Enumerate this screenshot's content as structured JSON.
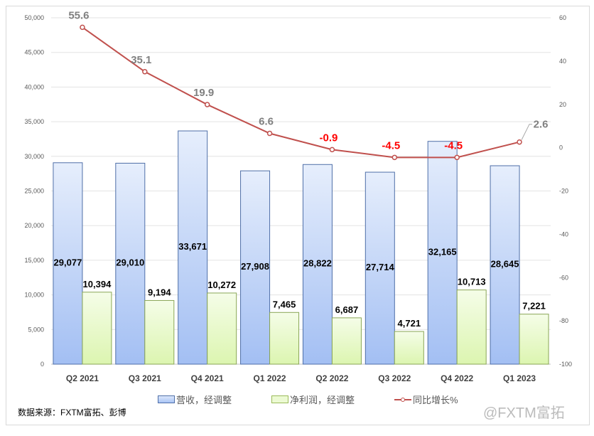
{
  "chart_data": {
    "type": "bar",
    "categories": [
      "Q2 2021",
      "Q3 2021",
      "Q4 2021",
      "Q1 2022",
      "Q2 2022",
      "Q3 2022",
      "Q4 2022",
      "Q1 2023"
    ],
    "series": [
      {
        "name": "营收，经调整",
        "type": "bar",
        "axis": "left",
        "values": [
          29077,
          29010,
          33671,
          27908,
          28822,
          27714,
          32165,
          28645
        ],
        "labels": [
          "29,077",
          "29,010",
          "33,671",
          "27,908",
          "28,822",
          "27,714",
          "32,165",
          "28,645"
        ],
        "color": "#a9c4f5"
      },
      {
        "name": "净利润，经调整",
        "type": "bar",
        "axis": "left",
        "values": [
          10394,
          9194,
          10272,
          7465,
          6687,
          4721,
          10713,
          7221
        ],
        "labels": [
          "10,394",
          "9,194",
          "10,272",
          "7,465",
          "6,687",
          "4,721",
          "10,713",
          "7,221"
        ],
        "color": "#e4f8c0"
      },
      {
        "name": "同比增长%",
        "type": "line",
        "axis": "right",
        "values": [
          55.6,
          35.1,
          19.9,
          6.6,
          -0.9,
          -4.5,
          -4.5,
          2.6
        ],
        "labels": [
          "55.6",
          "35.1",
          "19.9",
          "6.6",
          "-0.9",
          "-4.5",
          "-4.5",
          "2.6"
        ],
        "color": "#c0504d"
      }
    ],
    "left_axis": {
      "ylim": [
        0,
        50000
      ],
      "ticks": [
        "0",
        "5,000",
        "10,000",
        "15,000",
        "20,000",
        "25,000",
        "30,000",
        "35,000",
        "40,000",
        "45,000",
        "50,000"
      ]
    },
    "right_axis": {
      "ylim": [
        -100,
        60
      ],
      "ticks": [
        "-100",
        "-80",
        "-60",
        "-40",
        "-20",
        "0",
        "20",
        "40",
        "60"
      ]
    },
    "grid": true,
    "legend": "bottom"
  },
  "source": "数据来源：FXTM富拓、彭博",
  "watermark": "@FXTM富拓"
}
